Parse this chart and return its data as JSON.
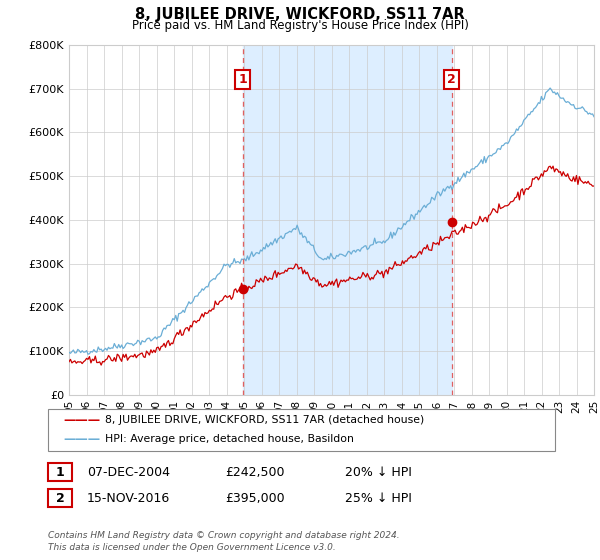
{
  "title": "8, JUBILEE DRIVE, WICKFORD, SS11 7AR",
  "subtitle": "Price paid vs. HM Land Registry's House Price Index (HPI)",
  "legend_line1": "8, JUBILEE DRIVE, WICKFORD, SS11 7AR (detached house)",
  "legend_line2": "HPI: Average price, detached house, Basildon",
  "transaction1_date": "07-DEC-2004",
  "transaction1_price": "£242,500",
  "transaction1_hpi": "20% ↓ HPI",
  "transaction1_year": 2004.92,
  "transaction1_value": 242500,
  "transaction2_date": "15-NOV-2016",
  "transaction2_price": "£395,000",
  "transaction2_hpi": "25% ↓ HPI",
  "transaction2_year": 2016.87,
  "transaction2_value": 395000,
  "footer": "Contains HM Land Registry data © Crown copyright and database right 2024.\nThis data is licensed under the Open Government Licence v3.0.",
  "hpi_color": "#6baed6",
  "price_color": "#cc0000",
  "vline_color": "#e06060",
  "shade_color": "#ddeeff",
  "bg_color": "#ffffff",
  "grid_color": "#cccccc",
  "ylim": [
    0,
    800000
  ],
  "yticks": [
    0,
    100000,
    200000,
    300000,
    400000,
    500000,
    600000,
    700000,
    800000
  ],
  "ytick_labels": [
    "£0",
    "£100K",
    "£200K",
    "£300K",
    "£400K",
    "£500K",
    "£600K",
    "£700K",
    "£800K"
  ],
  "xstart": 1995,
  "xend": 2025
}
